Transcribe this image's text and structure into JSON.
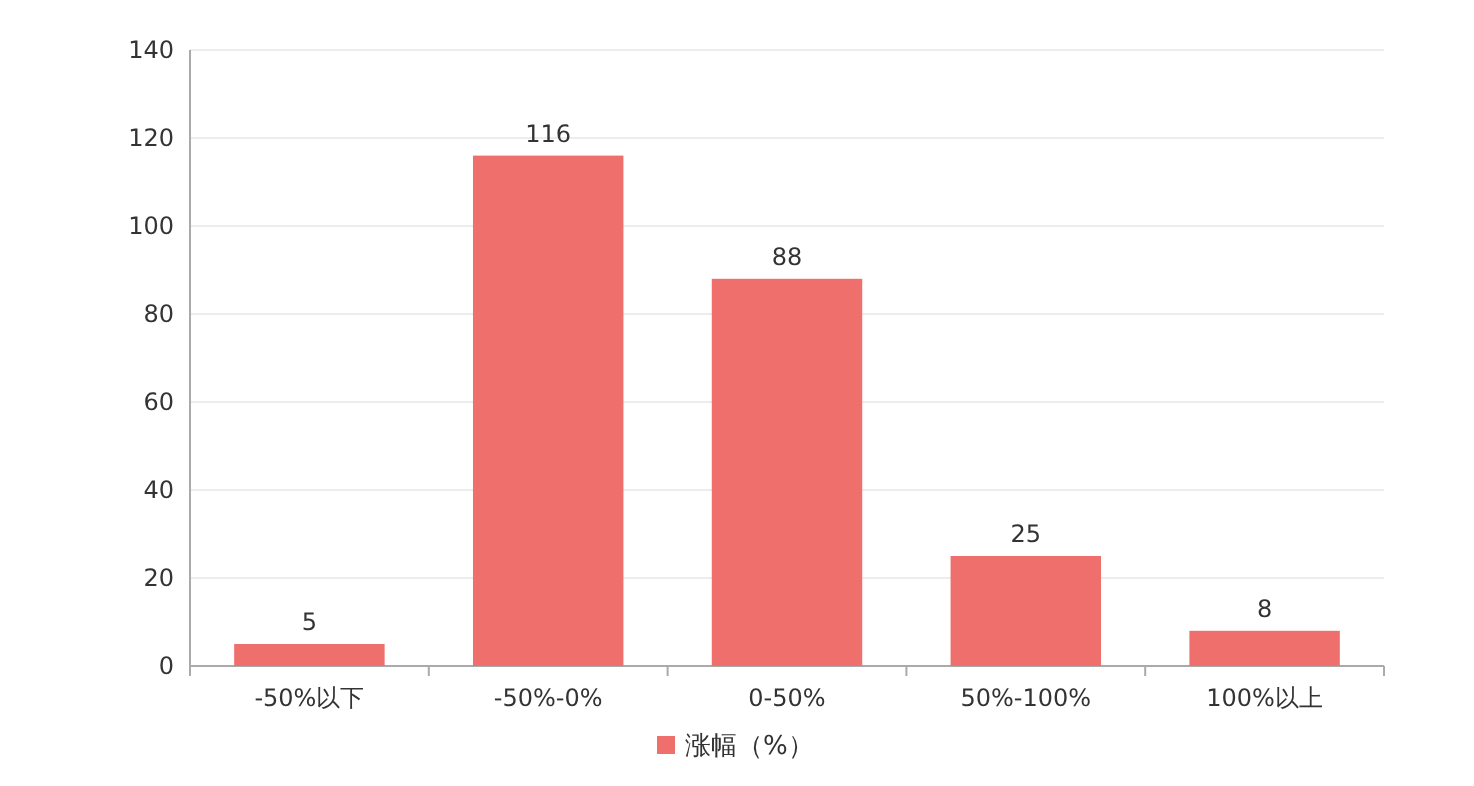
{
  "chart_data": {
    "type": "bar",
    "categories": [
      "-50%以下",
      "-50%-0%",
      "0-50%",
      "50%-100%",
      "100%以上"
    ],
    "series": [
      {
        "name": "涨幅（%）",
        "color": "#ef6f6c",
        "values": [
          5,
          116,
          88,
          25,
          8
        ]
      }
    ],
    "ylim": [
      0,
      140
    ],
    "yticks": [
      0,
      20,
      40,
      60,
      80,
      100,
      120,
      140
    ],
    "grid": "y",
    "legend": "bottom",
    "data_labels": true
  }
}
